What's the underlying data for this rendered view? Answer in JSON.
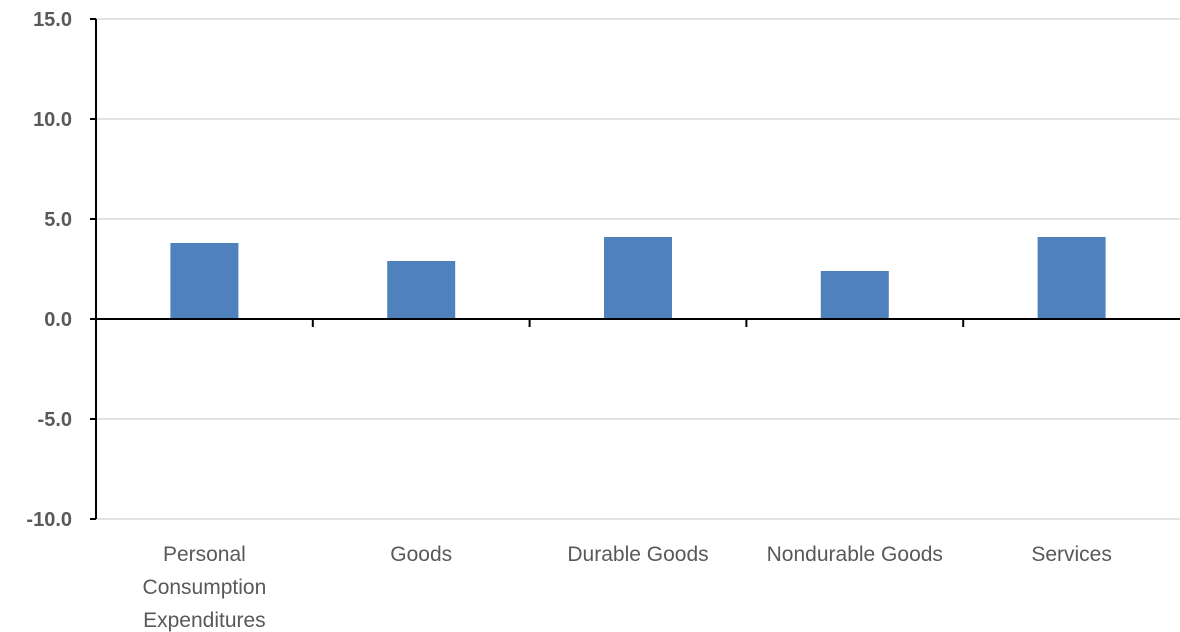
{
  "chart_data": {
    "type": "bar",
    "categories": [
      [
        "Personal",
        "Consumption",
        "Expenditures"
      ],
      [
        "Goods"
      ],
      [
        "Durable Goods"
      ],
      [
        "Nondurable Goods"
      ],
      [
        "Services"
      ]
    ],
    "values": [
      3.8,
      2.9,
      4.1,
      2.4,
      4.1
    ],
    "ylim": [
      -10,
      15
    ],
    "yticks": [
      "15.0",
      "10.0",
      "5.0",
      "0.0",
      "-5.0",
      "-10.0"
    ],
    "ytick_values": [
      15,
      10,
      5,
      0,
      -5,
      -10
    ],
    "grid": true,
    "legend": "none",
    "bar_color": "#4f81bd",
    "grid_color": "#d9d9d9",
    "axis_color": "#000000",
    "label_color": "#595959"
  }
}
